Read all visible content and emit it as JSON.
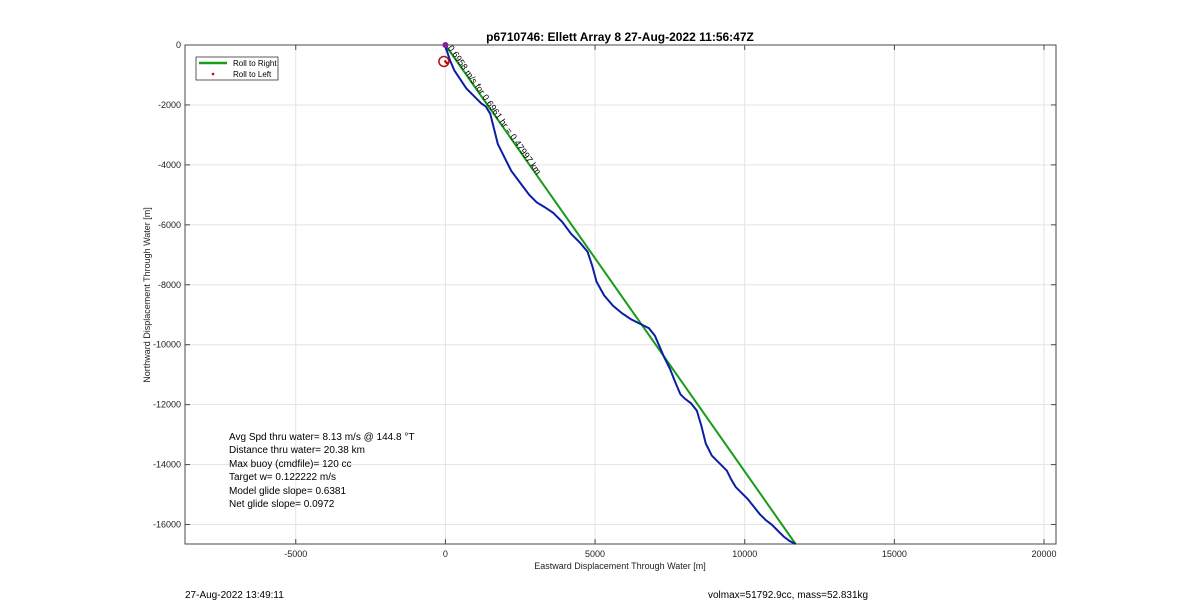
{
  "chart_data": {
    "type": "line",
    "title": "p6710746: Ellett Array 8 27-Aug-2022 11:56:47Z",
    "xlabel": "Eastward Displacement Through Water [m]",
    "ylabel": "Northward Displacement Through Water [m]",
    "xlim": [
      -8700,
      20400
    ],
    "ylim": [
      -16650,
      0
    ],
    "xticks": [
      -5000,
      0,
      5000,
      10000,
      15000,
      20000
    ],
    "yticks": [
      0,
      -2000,
      -4000,
      -6000,
      -8000,
      -10000,
      -12000,
      -14000,
      -16000
    ],
    "grid": true,
    "legend": {
      "placement": "top-left",
      "entries": [
        {
          "label": "Roll to Right",
          "color": "#1a9b1a",
          "style": "line"
        },
        {
          "label": "Roll to Left",
          "color": "#cc0000",
          "style": "dot"
        }
      ]
    },
    "series": [
      {
        "name": "Roll to Right",
        "color": "#1a9b1a",
        "x": [
          0,
          11700
        ],
        "y": [
          0,
          -16650
        ]
      },
      {
        "color": "#0b1fa6",
        "x": [
          0,
          50,
          150,
          300,
          500,
          700,
          900,
          1050,
          1200,
          1350,
          1500,
          1650,
          1750,
          1950,
          2200,
          2500,
          2800,
          3050,
          3300,
          3600,
          3900,
          4200,
          4500,
          4750,
          4900,
          5050,
          5300,
          5600,
          5900,
          6200,
          6500,
          6800,
          7000,
          7150,
          7300,
          7500,
          7700,
          7850,
          8000,
          8200,
          8400,
          8550,
          8700,
          8900,
          9100,
          9250,
          9400,
          9550,
          9700,
          9900,
          10100,
          10300,
          10500,
          10700,
          10900,
          11100,
          11300,
          11500,
          11700
        ],
        "y": [
          0,
          -200,
          -500,
          -850,
          -1150,
          -1450,
          -1650,
          -1800,
          -1950,
          -2050,
          -2300,
          -2900,
          -3300,
          -3700,
          -4200,
          -4600,
          -5000,
          -5250,
          -5400,
          -5600,
          -5900,
          -6300,
          -6600,
          -6900,
          -7350,
          -7900,
          -8350,
          -8700,
          -8950,
          -9150,
          -9300,
          -9450,
          -9700,
          -10050,
          -10400,
          -10800,
          -11300,
          -11650,
          -11800,
          -11950,
          -12200,
          -12700,
          -13300,
          -13700,
          -13900,
          -14050,
          -14200,
          -14500,
          -14750,
          -14950,
          -15150,
          -15400,
          -15650,
          -15850,
          -16000,
          -16200,
          -16400,
          -16550,
          -16650
        ]
      },
      {
        "name": "Roll to Left",
        "color": "#cc0000",
        "x": [
          0,
          50
        ],
        "y": [
          -550,
          -600
        ]
      }
    ],
    "annotations": {
      "current_marker": {
        "x": -50,
        "y": -550,
        "color": "#b01010"
      },
      "start_marker": {
        "x": 0,
        "y": 0,
        "color": "#8a1aa0"
      },
      "rotated_text": "0.6958 m/s for 0.6961 hr = 0.47997 km"
    },
    "stats": [
      "Avg Spd thru water=  8.13 m/s @ 144.8 °T",
      "Distance thru water= 20.38 km",
      "Max buoy (cmdfile)= 120 cc",
      "Target w= 0.122222 m/s",
      "Model glide slope= 0.6381",
      "Net glide slope= 0.0972"
    ]
  },
  "footer": {
    "left": "27-Aug-2022 13:49:11",
    "right": "volmax=51792.9cc, mass=52.831kg"
  }
}
